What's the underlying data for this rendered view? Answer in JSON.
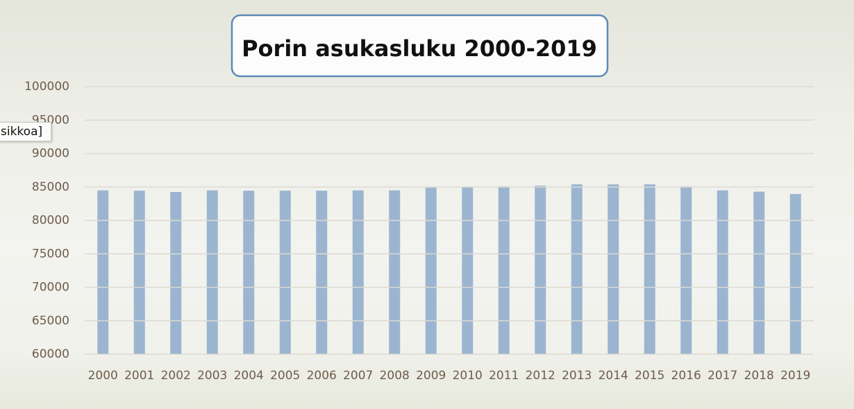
{
  "chart_data": {
    "type": "bar",
    "title": "Porin asukasluku 2000-2019",
    "annotation": "sikkoa]",
    "categories": [
      "2000",
      "2001",
      "2002",
      "2003",
      "2004",
      "2005",
      "2006",
      "2007",
      "2008",
      "2009",
      "2010",
      "2011",
      "2012",
      "2013",
      "2014",
      "2015",
      "2016",
      "2017",
      "2018",
      "2019"
    ],
    "values": [
      84500,
      84450,
      84250,
      84500,
      84450,
      84450,
      84450,
      84500,
      84500,
      84900,
      85000,
      85100,
      85200,
      85400,
      85400,
      85400,
      85100,
      84500,
      84300,
      83950
    ],
    "color": "#9bb5d1",
    "ylim": [
      60000,
      100000
    ],
    "yticks": [
      60000,
      65000,
      70000,
      75000,
      80000,
      85000,
      90000,
      95000,
      100000
    ],
    "grid": true
  }
}
